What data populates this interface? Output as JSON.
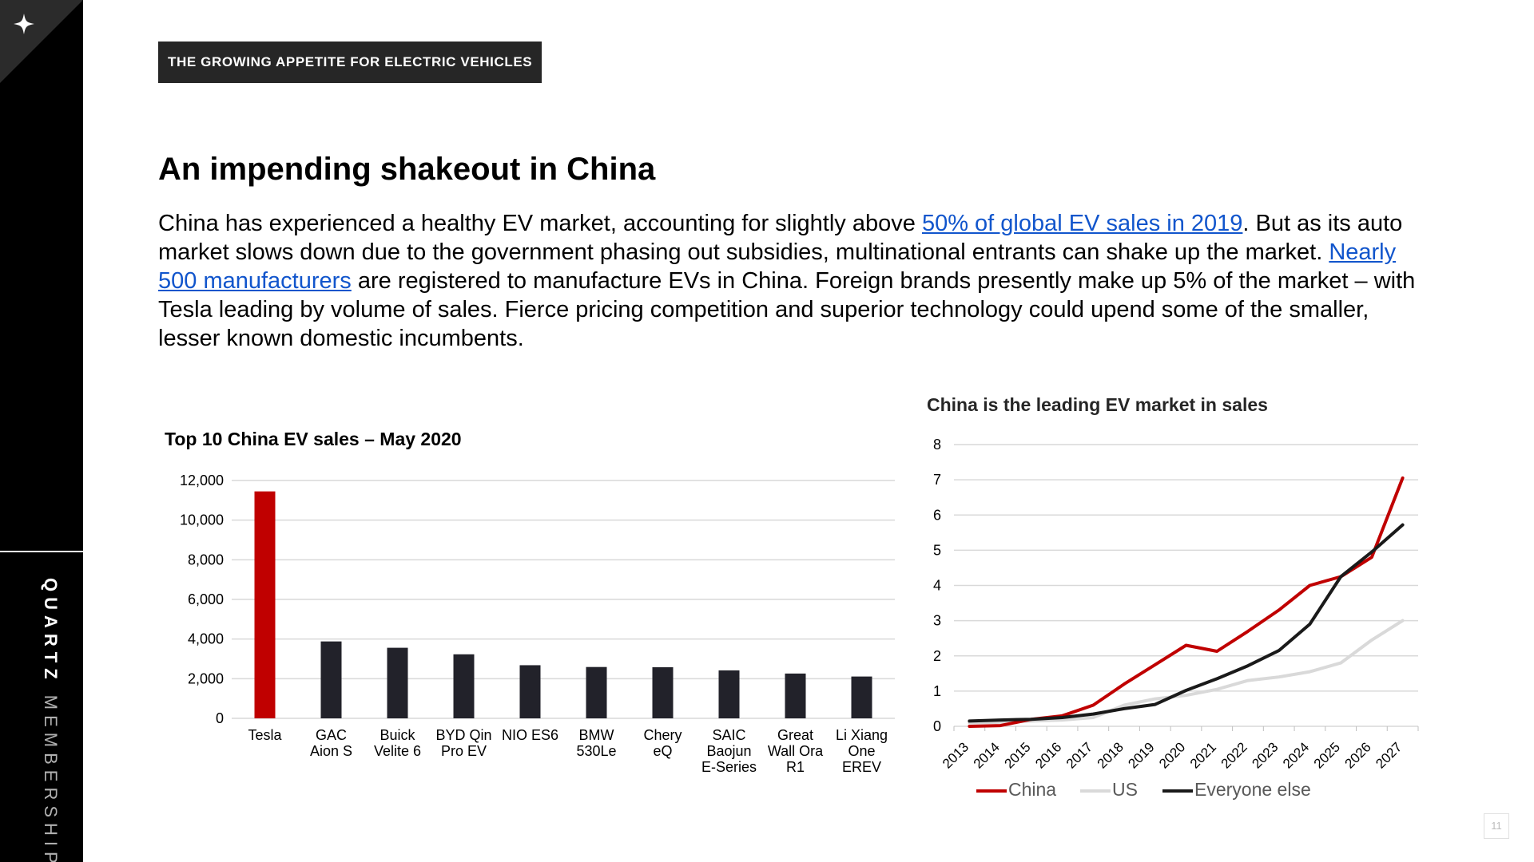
{
  "sidebar": {
    "brand_primary": "QUARTZ",
    "brand_secondary": "MEMBERSHIP",
    "logo_icon": "sparkle-icon"
  },
  "header": {
    "eyebrow": "THE GROWING APPETITE FOR ELECTRIC VEHICLES"
  },
  "title": "An impending shakeout in China",
  "body": {
    "t1": "China has experienced a healthy EV market, accounting for slightly above ",
    "link1": "50% of global EV sales in 2019",
    "t2": ". But as its auto market slows down due to the government phasing out subsidies, multinational entrants can shake up the market. ",
    "link2": "Nearly 500 manufacturers",
    "t3": " are registered to manufacture EVs in China. Foreign brands presently make up 5% of the market – with Tesla leading by volume of sales. Fierce pricing competition and superior technology could upend some of the smaller, lesser known domestic incumbents."
  },
  "page_number": "11",
  "colors": {
    "accent_red": "#c00000",
    "bar_dark": "#22222a",
    "us_line": "#d9d9d9",
    "everyone_line": "#1a1a1a",
    "link": "#1155cc"
  },
  "chart_data": [
    {
      "type": "bar",
      "title": "Top 10 China EV sales – May 2020",
      "categories": [
        [
          "Tesla"
        ],
        [
          "GAC",
          "Aion S"
        ],
        [
          "Buick",
          "Velite 6"
        ],
        [
          "BYD Qin",
          "Pro EV"
        ],
        [
          "NIO ES6"
        ],
        [
          "BMW",
          "530Le"
        ],
        [
          "Chery",
          "eQ"
        ],
        [
          "SAIC",
          "Baojun",
          "E-Series"
        ],
        [
          "Great",
          "Wall Ora",
          "R1"
        ],
        [
          "Li Xiang",
          "One",
          "EREV"
        ]
      ],
      "values": [
        11450,
        3880,
        3560,
        3230,
        2680,
        2590,
        2580,
        2420,
        2260,
        2110
      ],
      "highlight": "Tesla",
      "ylim": [
        0,
        12000
      ],
      "yticks": [
        "0",
        "2,000",
        "4,000",
        "6,000",
        "8,000",
        "10,000",
        "12,000"
      ],
      "grid": true
    },
    {
      "type": "line",
      "title": "China is the leading EV market in sales",
      "x": [
        "2013",
        "2014",
        "2015",
        "2016",
        "2017",
        "2018",
        "2019",
        "2020",
        "2021",
        "2022",
        "2023",
        "2024",
        "2025",
        "2026",
        "2027"
      ],
      "ylim": [
        0,
        8
      ],
      "yticks": [
        "0",
        "1",
        "2",
        "3",
        "4",
        "5",
        "6",
        "7",
        "8"
      ],
      "grid": true,
      "legend": "bottom",
      "series": [
        {
          "name": "China",
          "color": "#c00000",
          "values": [
            0.0,
            0.02,
            0.2,
            0.3,
            0.6,
            1.2,
            1.75,
            2.3,
            2.13,
            2.7,
            3.3,
            4.0,
            4.25,
            4.8,
            7.05
          ]
        },
        {
          "name": "US",
          "color": "#d9d9d9",
          "values": [
            0.1,
            0.12,
            0.15,
            0.18,
            0.25,
            0.6,
            0.78,
            0.88,
            1.05,
            1.3,
            1.4,
            1.55,
            1.8,
            2.45,
            3.0
          ]
        },
        {
          "name": "Everyone else",
          "color": "#1a1a1a",
          "values": [
            0.15,
            0.18,
            0.2,
            0.25,
            0.35,
            0.5,
            0.62,
            1.02,
            1.35,
            1.72,
            2.15,
            2.9,
            4.25,
            4.95,
            5.72
          ]
        }
      ]
    }
  ]
}
